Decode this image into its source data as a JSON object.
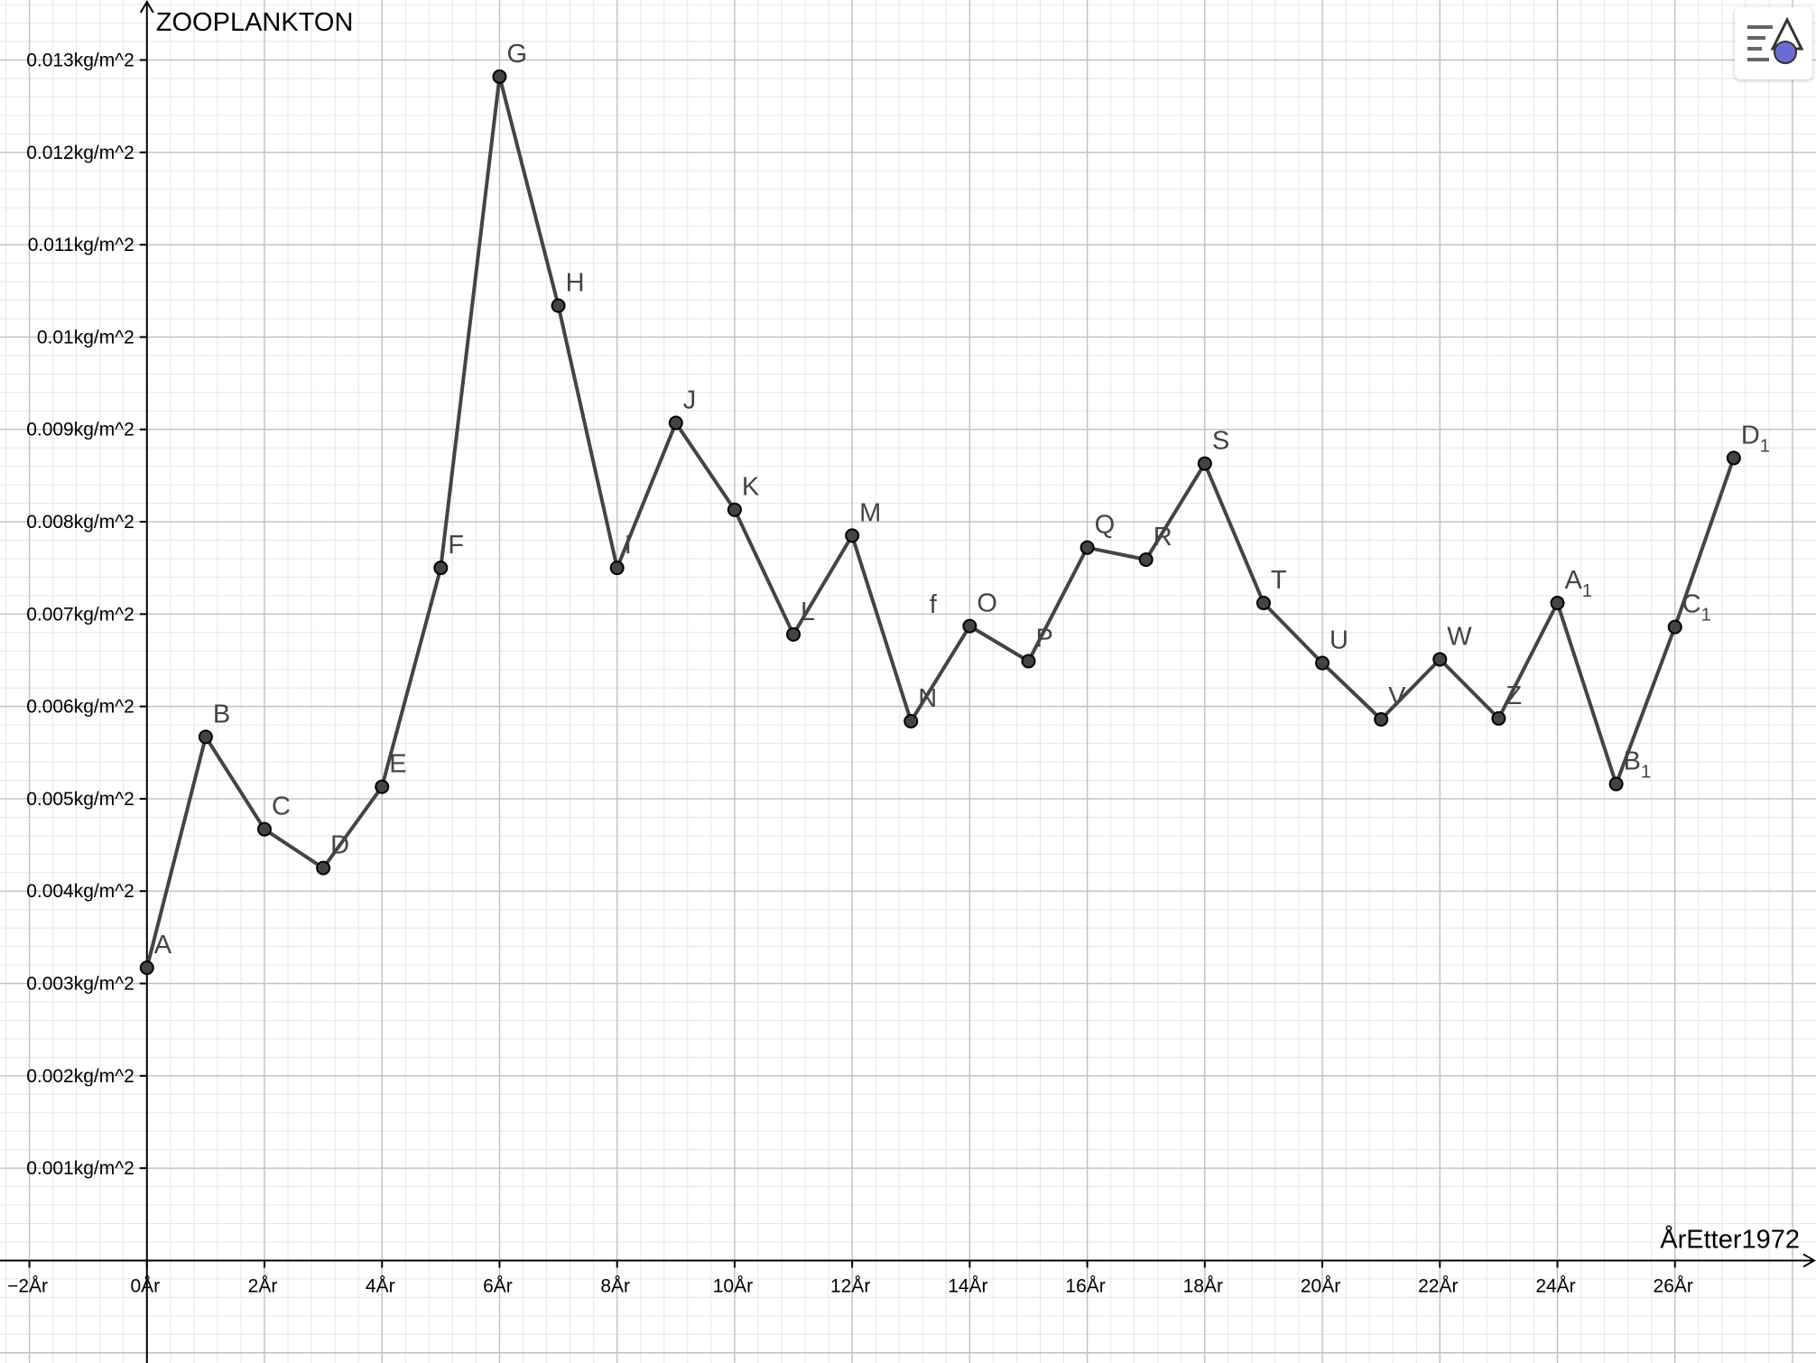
{
  "chart_data": {
    "type": "line",
    "title": "",
    "xlabel": "ÅrEtter1972",
    "ylabel": "ZOOPLANKTON",
    "xlim": [
      -2.5,
      28.4
    ],
    "ylim": [
      -0.00111,
      0.01365
    ],
    "x_ticks": [
      {
        "value": -2,
        "label": "−2År"
      },
      {
        "value": 0,
        "label": "0År"
      },
      {
        "value": 2,
        "label": "2År"
      },
      {
        "value": 4,
        "label": "4År"
      },
      {
        "value": 6,
        "label": "6År"
      },
      {
        "value": 8,
        "label": "8År"
      },
      {
        "value": 10,
        "label": "10År"
      },
      {
        "value": 12,
        "label": "12År"
      },
      {
        "value": 14,
        "label": "14År"
      },
      {
        "value": 16,
        "label": "16År"
      },
      {
        "value": 18,
        "label": "18År"
      },
      {
        "value": 20,
        "label": "20År"
      },
      {
        "value": 22,
        "label": "22År"
      },
      {
        "value": 24,
        "label": "24År"
      },
      {
        "value": 26,
        "label": "26År"
      }
    ],
    "y_ticks": [
      {
        "value": 0.001,
        "label": "0.001kg/m^2"
      },
      {
        "value": 0.002,
        "label": "0.002kg/m^2"
      },
      {
        "value": 0.003,
        "label": "0.003kg/m^2"
      },
      {
        "value": 0.004,
        "label": "0.004kg/m^2"
      },
      {
        "value": 0.005,
        "label": "0.005kg/m^2"
      },
      {
        "value": 0.006,
        "label": "0.006kg/m^2"
      },
      {
        "value": 0.007,
        "label": "0.007kg/m^2"
      },
      {
        "value": 0.008,
        "label": "0.008kg/m^2"
      },
      {
        "value": 0.009,
        "label": "0.009kg/m^2"
      },
      {
        "value": 0.01,
        "label": "0.01kg/m^2"
      },
      {
        "value": 0.011,
        "label": "0.011kg/m^2"
      },
      {
        "value": 0.012,
        "label": "0.012kg/m^2"
      },
      {
        "value": 0.013,
        "label": "0.013kg/m^2"
      }
    ],
    "grid": {
      "major": true,
      "minor": true
    },
    "series": [
      {
        "points": [
          {
            "label": "A",
            "x": 0,
            "y": 0.00317
          },
          {
            "label": "B",
            "x": 1,
            "y": 0.00567
          },
          {
            "label": "C",
            "x": 2,
            "y": 0.00467
          },
          {
            "label": "D",
            "x": 3,
            "y": 0.00425
          },
          {
            "label": "E",
            "x": 4,
            "y": 0.00513
          },
          {
            "label": "F",
            "x": 5,
            "y": 0.0075
          },
          {
            "label": "G",
            "x": 6,
            "y": 0.01282
          },
          {
            "label": "H",
            "x": 7,
            "y": 0.01034
          },
          {
            "label": "I",
            "x": 8,
            "y": 0.0075
          },
          {
            "label": "J",
            "x": 9,
            "y": 0.00907
          },
          {
            "label": "K",
            "x": 10,
            "y": 0.00813
          },
          {
            "label": "L",
            "x": 11,
            "y": 0.00678
          },
          {
            "label": "M",
            "x": 12,
            "y": 0.00785
          },
          {
            "label": "N",
            "x": 13,
            "y": 0.00584
          },
          {
            "label": "O",
            "x": 14,
            "y": 0.00687
          },
          {
            "label": "P",
            "x": 15,
            "y": 0.00649
          },
          {
            "label": "Q",
            "x": 16,
            "y": 0.00772
          },
          {
            "label": "R",
            "x": 17,
            "y": 0.00759
          },
          {
            "label": "S",
            "x": 18,
            "y": 0.00863
          },
          {
            "label": "T",
            "x": 19,
            "y": 0.00712
          },
          {
            "label": "U",
            "x": 20,
            "y": 0.00647
          },
          {
            "label": "V",
            "x": 21,
            "y": 0.00586
          },
          {
            "label": "W",
            "x": 22,
            "y": 0.00651
          },
          {
            "label": "Z",
            "x": 23,
            "y": 0.00587
          },
          {
            "label": "A",
            "sub": "1",
            "x": 24,
            "y": 0.00712
          },
          {
            "label": "B",
            "sub": "1",
            "x": 25,
            "y": 0.00516
          },
          {
            "label": "C",
            "sub": "1",
            "x": 26,
            "y": 0.00686
          },
          {
            "label": "D",
            "sub": "1",
            "x": 27,
            "y": 0.00869
          }
        ]
      }
    ],
    "annotations": [
      {
        "text": "f",
        "x": 13.5,
        "y": 0.00705
      }
    ]
  },
  "colors": {
    "line": "#444444",
    "point_fill": "#444444",
    "point_stroke": "#000000",
    "grid_major": "#c0c0c0",
    "grid_minor": "#e6e6e6",
    "axis": "#000000",
    "icon_accent": "#6b6bd6"
  },
  "toolbar": {
    "style_bar_icon": "graphics-style-bar-icon"
  }
}
